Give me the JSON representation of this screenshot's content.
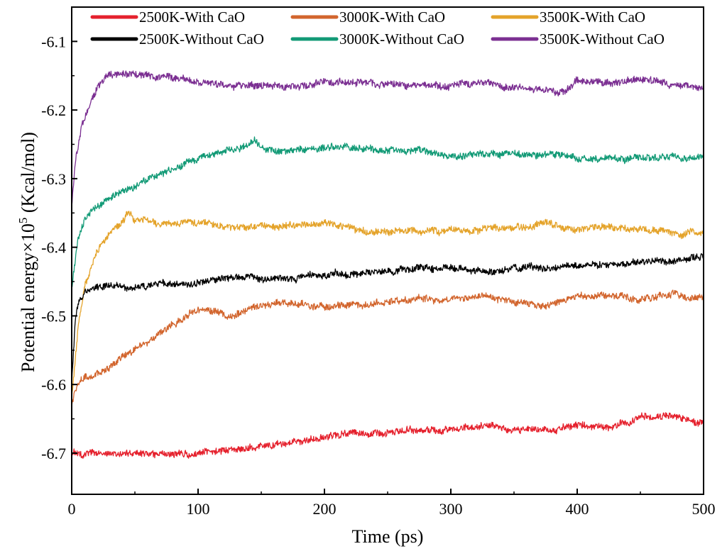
{
  "chart_data": {
    "type": "line",
    "xlabel": "Time (ps)",
    "ylabel_main": "Potential energy×10",
    "ylabel_sup": "5",
    "ylabel_unit": " (Kcal/mol)",
    "xlim": [
      0,
      500
    ],
    "ylim": [
      -6.76,
      -6.05
    ],
    "xticks": [
      0,
      100,
      200,
      300,
      400,
      500
    ],
    "yticks": [
      -6.7,
      -6.6,
      -6.5,
      -6.4,
      -6.3,
      -6.2,
      -6.1
    ],
    "legend_placement": "top",
    "series": [
      {
        "name": "2500K-With CaO",
        "color": "#e5212d",
        "x": [
          0,
          25,
          50,
          75,
          90,
          100,
          125,
          150,
          175,
          200,
          225,
          250,
          275,
          300,
          325,
          350,
          375,
          400,
          425,
          450,
          470,
          485,
          500
        ],
        "y": [
          -6.7,
          -6.7,
          -6.7,
          -6.7,
          -6.7,
          -6.7,
          -6.695,
          -6.69,
          -6.685,
          -6.675,
          -6.67,
          -6.67,
          -6.665,
          -6.665,
          -6.66,
          -6.665,
          -6.665,
          -6.66,
          -6.66,
          -6.65,
          -6.645,
          -6.65,
          -6.655
        ]
      },
      {
        "name": "3000K-With CaO",
        "color": "#d2652d",
        "x": [
          0,
          5,
          10,
          25,
          50,
          75,
          100,
          125,
          150,
          175,
          200,
          225,
          250,
          275,
          300,
          325,
          350,
          375,
          400,
          425,
          450,
          475,
          500
        ],
        "y": [
          -6.63,
          -6.6,
          -6.59,
          -6.58,
          -6.55,
          -6.52,
          -6.49,
          -6.5,
          -6.485,
          -6.48,
          -6.485,
          -6.485,
          -6.48,
          -6.475,
          -6.475,
          -6.47,
          -6.48,
          -6.485,
          -6.47,
          -6.47,
          -6.475,
          -6.47,
          -6.475
        ]
      },
      {
        "name": "3500K-With CaO",
        "color": "#e4a32a",
        "x": [
          0,
          5,
          10,
          20,
          30,
          40,
          45,
          50,
          75,
          100,
          125,
          150,
          175,
          200,
          225,
          250,
          275,
          300,
          325,
          350,
          375,
          400,
          425,
          450,
          475,
          500
        ],
        "y": [
          -6.62,
          -6.52,
          -6.46,
          -6.41,
          -6.38,
          -6.36,
          -6.345,
          -6.36,
          -6.365,
          -6.365,
          -6.37,
          -6.37,
          -6.37,
          -6.365,
          -6.375,
          -6.38,
          -6.375,
          -6.375,
          -6.375,
          -6.37,
          -6.365,
          -6.375,
          -6.37,
          -6.375,
          -6.38,
          -6.38
        ]
      },
      {
        "name": "2500K-Without CaO",
        "color": "#000000",
        "x": [
          0,
          3,
          6,
          10,
          20,
          30,
          50,
          75,
          100,
          125,
          150,
          175,
          200,
          225,
          250,
          275,
          300,
          325,
          350,
          375,
          400,
          425,
          450,
          475,
          500
        ],
        "y": [
          -6.6,
          -6.5,
          -6.48,
          -6.465,
          -6.46,
          -6.455,
          -6.46,
          -6.455,
          -6.45,
          -6.445,
          -6.445,
          -6.445,
          -6.44,
          -6.44,
          -6.435,
          -6.43,
          -6.43,
          -6.435,
          -6.43,
          -6.43,
          -6.425,
          -6.425,
          -6.42,
          -6.42,
          -6.415
        ]
      },
      {
        "name": "3000K-Without CaO",
        "color": "#129a76",
        "x": [
          0,
          5,
          10,
          20,
          30,
          50,
          75,
          100,
          125,
          145,
          150,
          175,
          200,
          225,
          250,
          275,
          300,
          325,
          350,
          375,
          400,
          425,
          450,
          475,
          500
        ],
        "y": [
          -6.46,
          -6.39,
          -6.36,
          -6.34,
          -6.33,
          -6.31,
          -6.29,
          -6.27,
          -6.26,
          -6.245,
          -6.255,
          -6.26,
          -6.255,
          -6.255,
          -6.26,
          -6.26,
          -6.265,
          -6.265,
          -6.265,
          -6.265,
          -6.27,
          -6.27,
          -6.27,
          -6.27,
          -6.27
        ]
      },
      {
        "name": "3500K-Without CaO",
        "color": "#7b2f92",
        "x": [
          0,
          3,
          8,
          15,
          20,
          25,
          30,
          40,
          60,
          80,
          100,
          125,
          150,
          175,
          200,
          225,
          250,
          275,
          300,
          325,
          350,
          375,
          390,
          400,
          425,
          450,
          475,
          500
        ],
        "y": [
          -6.34,
          -6.27,
          -6.22,
          -6.19,
          -6.17,
          -6.155,
          -6.145,
          -6.145,
          -6.15,
          -6.155,
          -6.16,
          -6.165,
          -6.165,
          -6.165,
          -6.16,
          -6.16,
          -6.16,
          -6.165,
          -6.165,
          -6.16,
          -6.165,
          -6.17,
          -6.175,
          -6.155,
          -6.16,
          -6.155,
          -6.165,
          -6.165
        ]
      }
    ]
  }
}
